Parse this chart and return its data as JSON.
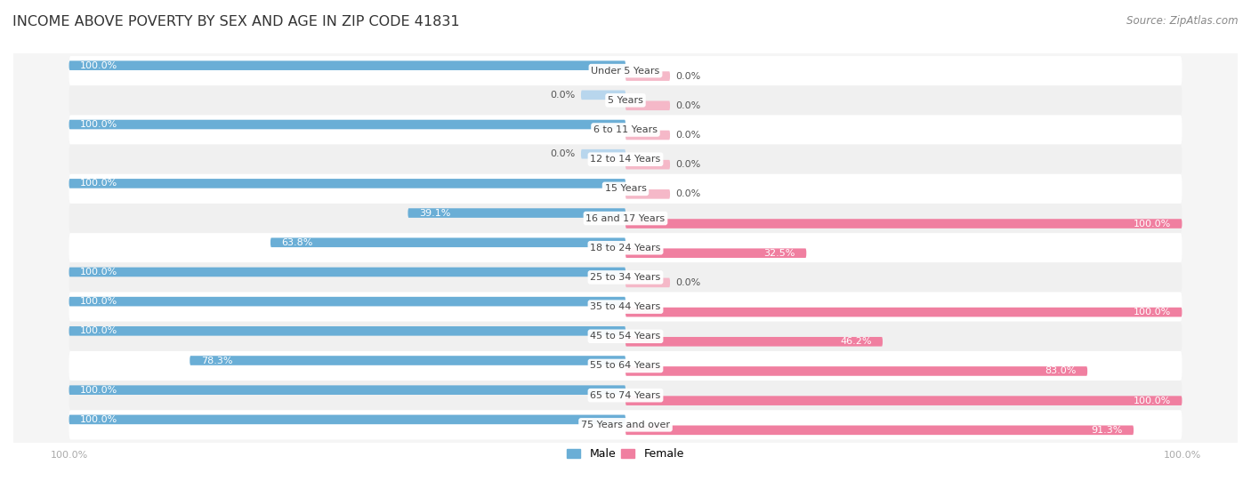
{
  "title": "INCOME ABOVE POVERTY BY SEX AND AGE IN ZIP CODE 41831",
  "source": "Source: ZipAtlas.com",
  "categories": [
    "Under 5 Years",
    "5 Years",
    "6 to 11 Years",
    "12 to 14 Years",
    "15 Years",
    "16 and 17 Years",
    "18 to 24 Years",
    "25 to 34 Years",
    "35 to 44 Years",
    "45 to 54 Years",
    "55 to 64 Years",
    "65 to 74 Years",
    "75 Years and over"
  ],
  "male_values": [
    100.0,
    0.0,
    100.0,
    0.0,
    100.0,
    39.1,
    63.8,
    100.0,
    100.0,
    100.0,
    78.3,
    100.0,
    100.0
  ],
  "female_values": [
    0.0,
    0.0,
    0.0,
    0.0,
    0.0,
    100.0,
    32.5,
    0.0,
    100.0,
    46.2,
    83.0,
    100.0,
    91.3
  ],
  "male_color": "#6aaed6",
  "female_color": "#f07fa0",
  "male_color_light": "#b8d6ed",
  "female_color_light": "#f5b8c8",
  "male_label": "Male",
  "female_label": "Female",
  "row_colors": [
    "#ffffff",
    "#f0f0f0"
  ],
  "title_fontsize": 11.5,
  "source_fontsize": 8.5,
  "label_fontsize": 8,
  "value_fontsize": 8,
  "legend_fontsize": 9,
  "axis_tick_fontsize": 8
}
